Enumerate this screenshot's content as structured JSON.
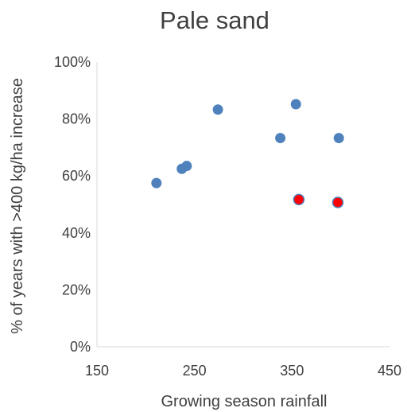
{
  "chart_data": {
    "type": "scatter",
    "title": "Pale sand",
    "xlabel": "Growing season rainfall",
    "ylabel": "% of years with >400 kg/ha increase",
    "xlim": [
      150,
      450
    ],
    "ylim": [
      0,
      1
    ],
    "x_ticks": [
      "150",
      "250",
      "350",
      "450"
    ],
    "y_ticks": [
      "0%",
      "20%",
      "40%",
      "60%",
      "80%",
      "100%"
    ],
    "grid": false,
    "legend": "none",
    "series": [
      {
        "color": "#4f81bd",
        "points": [
          {
            "x": 211,
            "y": 0.575
          },
          {
            "x": 237,
            "y": 0.625
          },
          {
            "x": 242,
            "y": 0.635
          },
          {
            "x": 274,
            "y": 0.833
          },
          {
            "x": 338,
            "y": 0.733
          },
          {
            "x": 354,
            "y": 0.852
          },
          {
            "x": 398,
            "y": 0.733
          }
        ]
      },
      {
        "color": "#ff0000",
        "outline": "#4f81bd",
        "points": [
          {
            "x": 357,
            "y": 0.517
          },
          {
            "x": 397,
            "y": 0.507
          }
        ]
      }
    ]
  }
}
